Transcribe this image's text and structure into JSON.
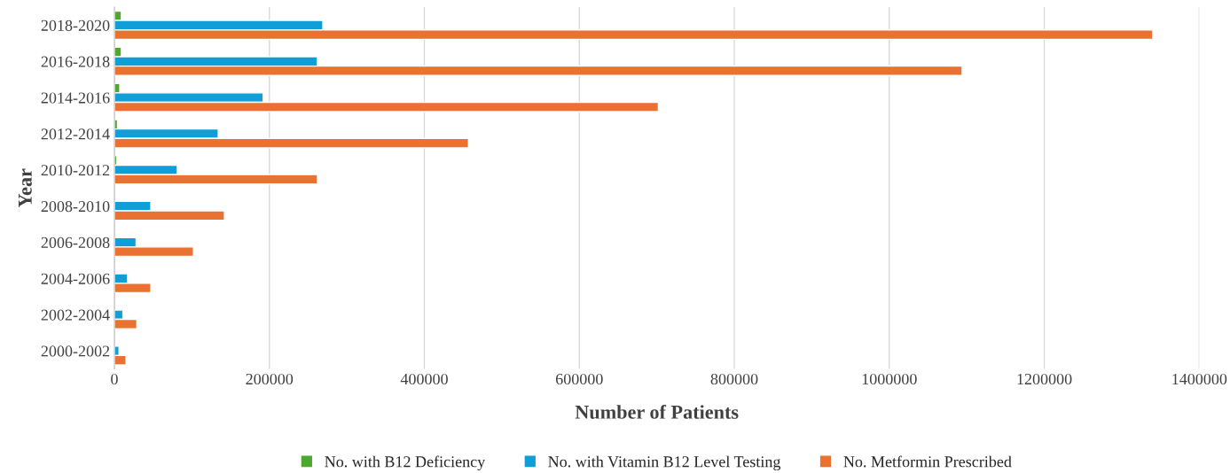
{
  "chart_data": {
    "type": "bar",
    "orientation": "horizontal",
    "xlabel": "Number of Patients",
    "ylabel": "Year",
    "categories": [
      "2018-2020",
      "2016-2018",
      "2014-2016",
      "2012-2014",
      "2010-2012",
      "2008-2010",
      "2006-2008",
      "2004-2006",
      "2002-2004",
      "2000-2002"
    ],
    "series": [
      {
        "name": "No. with B12 Deficiency",
        "color": "#4ea72e",
        "values": [
          9000,
          9000,
          7000,
          4000,
          3000,
          null,
          null,
          null,
          null,
          null
        ]
      },
      {
        "name": "No. with Vitamin B12 Level Testing",
        "color": "#0f9ed5",
        "values": [
          269000,
          262000,
          192000,
          134000,
          81000,
          47000,
          28000,
          17000,
          11000,
          6000
        ]
      },
      {
        "name": "No. Metformin Prescribed",
        "color": "#e97132",
        "values": [
          1340000,
          1094000,
          702000,
          457000,
          262000,
          142000,
          102000,
          47000,
          29000,
          15000
        ]
      }
    ],
    "xlim": [
      0,
      1400000
    ],
    "xticks": [
      0,
      200000,
      400000,
      600000,
      800000,
      1000000,
      1200000,
      1400000
    ],
    "grid": "x",
    "legend": "bottom"
  }
}
